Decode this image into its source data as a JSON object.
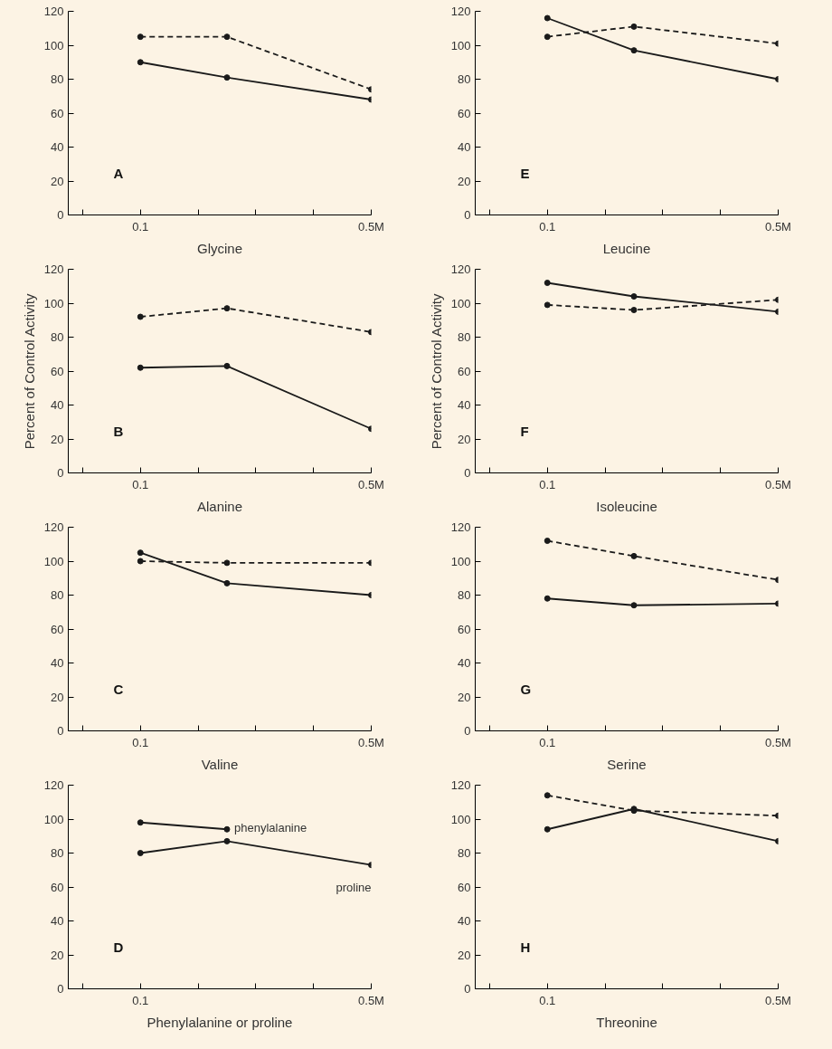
{
  "chart_data": [
    {
      "type": "line",
      "xlabel": "Glycine",
      "annotations": [
        "A"
      ],
      "x": [
        0.1,
        0.25,
        0.5
      ],
      "xlim": [
        -0.025,
        0.5
      ],
      "ylim": [
        0,
        120
      ],
      "yticks": [
        0,
        20,
        40,
        60,
        80,
        100,
        120
      ],
      "xticks": [
        {
          "value": 0,
          "label": null
        },
        {
          "value": 0.1,
          "label": "0.1"
        },
        {
          "value": 0.2,
          "label": null
        },
        {
          "value": 0.3,
          "label": null
        },
        {
          "value": 0.4,
          "label": null
        },
        {
          "value": 0.5,
          "label": "0.5M"
        }
      ],
      "grid": false,
      "marker": "circle",
      "series": [
        {
          "color": "#1a1a1a",
          "line_style": "dashed",
          "values": [
            105,
            105,
            74
          ]
        },
        {
          "color": "#1a1a1a",
          "line_style": "solid",
          "values": [
            90,
            81,
            68
          ]
        }
      ]
    },
    {
      "type": "line",
      "xlabel": "Alanine",
      "ylabel": "Percent of Control Activity",
      "annotations": [
        "B"
      ],
      "x": [
        0.1,
        0.25,
        0.5
      ],
      "xlim": [
        -0.025,
        0.5
      ],
      "ylim": [
        0,
        120
      ],
      "yticks": [
        0,
        20,
        40,
        60,
        80,
        100,
        120
      ],
      "xticks": [
        {
          "value": 0,
          "label": null
        },
        {
          "value": 0.1,
          "label": "0.1"
        },
        {
          "value": 0.2,
          "label": null
        },
        {
          "value": 0.3,
          "label": null
        },
        {
          "value": 0.4,
          "label": null
        },
        {
          "value": 0.5,
          "label": "0.5M"
        }
      ],
      "grid": false,
      "marker": "circle",
      "series": [
        {
          "color": "#1a1a1a",
          "line_style": "dashed",
          "values": [
            92,
            97,
            83
          ]
        },
        {
          "color": "#1a1a1a",
          "line_style": "solid",
          "values": [
            62,
            63,
            26
          ]
        }
      ]
    },
    {
      "type": "line",
      "xlabel": "Valine",
      "annotations": [
        "C"
      ],
      "x": [
        0.1,
        0.25,
        0.5
      ],
      "xlim": [
        -0.025,
        0.5
      ],
      "ylim": [
        0,
        120
      ],
      "yticks": [
        0,
        20,
        40,
        60,
        80,
        100,
        120
      ],
      "xticks": [
        {
          "value": 0,
          "label": null
        },
        {
          "value": 0.1,
          "label": "0.1"
        },
        {
          "value": 0.2,
          "label": null
        },
        {
          "value": 0.3,
          "label": null
        },
        {
          "value": 0.4,
          "label": null
        },
        {
          "value": 0.5,
          "label": "0.5M"
        }
      ],
      "grid": false,
      "marker": "circle",
      "series": [
        {
          "color": "#1a1a1a",
          "line_style": "dashed",
          "values": [
            100,
            99,
            99
          ]
        },
        {
          "color": "#1a1a1a",
          "line_style": "solid",
          "values": [
            105,
            87,
            80
          ]
        }
      ]
    },
    {
      "type": "line",
      "xlabel": "Phenylalanine or proline",
      "annotations": [
        "D"
      ],
      "x": [
        0.1,
        0.25,
        0.5
      ],
      "xlim": [
        -0.025,
        0.5
      ],
      "ylim": [
        0,
        120
      ],
      "yticks": [
        0,
        20,
        40,
        60,
        80,
        100,
        120
      ],
      "xticks": [
        {
          "value": 0,
          "label": null
        },
        {
          "value": 0.1,
          "label": "0.1"
        },
        {
          "value": 0.2,
          "label": null
        },
        {
          "value": 0.3,
          "label": null
        },
        {
          "value": 0.4,
          "label": null
        },
        {
          "value": 0.5,
          "label": "0.5M"
        }
      ],
      "grid": false,
      "marker": "circle",
      "series": [
        {
          "name": "phenylalanine",
          "color": "#1a1a1a",
          "line_style": "solid",
          "x": [
            0.1,
            0.25
          ],
          "values": [
            98,
            94
          ]
        },
        {
          "name": "proline",
          "color": "#1a1a1a",
          "line_style": "solid",
          "values": [
            80,
            87,
            73
          ]
        }
      ]
    },
    {
      "type": "line",
      "xlabel": "Leucine",
      "annotations": [
        "E"
      ],
      "x": [
        0.1,
        0.25,
        0.5
      ],
      "xlim": [
        -0.025,
        0.5
      ],
      "ylim": [
        0,
        120
      ],
      "yticks": [
        0,
        20,
        40,
        60,
        80,
        100,
        120
      ],
      "xticks": [
        {
          "value": 0,
          "label": null
        },
        {
          "value": 0.1,
          "label": "0.1"
        },
        {
          "value": 0.2,
          "label": null
        },
        {
          "value": 0.3,
          "label": null
        },
        {
          "value": 0.4,
          "label": null
        },
        {
          "value": 0.5,
          "label": "0.5M"
        }
      ],
      "grid": false,
      "marker": "circle",
      "series": [
        {
          "color": "#1a1a1a",
          "line_style": "dashed",
          "values": [
            105,
            111,
            101
          ]
        },
        {
          "color": "#1a1a1a",
          "line_style": "solid",
          "values": [
            116,
            97,
            80
          ]
        }
      ]
    },
    {
      "type": "line",
      "xlabel": "Isoleucine",
      "ylabel": "Percent of Control Activity",
      "annotations": [
        "F"
      ],
      "x": [
        0.1,
        0.25,
        0.5
      ],
      "xlim": [
        -0.025,
        0.5
      ],
      "ylim": [
        0,
        120
      ],
      "yticks": [
        0,
        20,
        40,
        60,
        80,
        100,
        120
      ],
      "xticks": [
        {
          "value": 0,
          "label": null
        },
        {
          "value": 0.1,
          "label": "0.1"
        },
        {
          "value": 0.2,
          "label": null
        },
        {
          "value": 0.3,
          "label": null
        },
        {
          "value": 0.4,
          "label": null
        },
        {
          "value": 0.5,
          "label": "0.5M"
        }
      ],
      "grid": false,
      "marker": "circle",
      "series": [
        {
          "color": "#1a1a1a",
          "line_style": "dashed",
          "values": [
            99,
            96,
            102
          ]
        },
        {
          "color": "#1a1a1a",
          "line_style": "solid",
          "values": [
            112,
            104,
            95
          ]
        }
      ]
    },
    {
      "type": "line",
      "xlabel": "Serine",
      "annotations": [
        "G"
      ],
      "x": [
        0.1,
        0.25,
        0.5
      ],
      "xlim": [
        -0.025,
        0.5
      ],
      "ylim": [
        0,
        120
      ],
      "yticks": [
        0,
        20,
        40,
        60,
        80,
        100,
        120
      ],
      "xticks": [
        {
          "value": 0,
          "label": null
        },
        {
          "value": 0.1,
          "label": "0.1"
        },
        {
          "value": 0.2,
          "label": null
        },
        {
          "value": 0.3,
          "label": null
        },
        {
          "value": 0.4,
          "label": null
        },
        {
          "value": 0.5,
          "label": "0.5M"
        }
      ],
      "grid": false,
      "marker": "circle",
      "series": [
        {
          "color": "#1a1a1a",
          "line_style": "dashed",
          "values": [
            112,
            103,
            89
          ]
        },
        {
          "color": "#1a1a1a",
          "line_style": "solid",
          "values": [
            78,
            74,
            75
          ]
        }
      ]
    },
    {
      "type": "line",
      "xlabel": "Threonine",
      "annotations": [
        "H"
      ],
      "x": [
        0.1,
        0.25,
        0.5
      ],
      "xlim": [
        -0.025,
        0.5
      ],
      "ylim": [
        0,
        120
      ],
      "yticks": [
        0,
        20,
        40,
        60,
        80,
        100,
        120
      ],
      "xticks": [
        {
          "value": 0,
          "label": null
        },
        {
          "value": 0.1,
          "label": "0.1"
        },
        {
          "value": 0.2,
          "label": null
        },
        {
          "value": 0.3,
          "label": null
        },
        {
          "value": 0.4,
          "label": null
        },
        {
          "value": 0.5,
          "label": "0.5M"
        }
      ],
      "grid": false,
      "marker": "circle",
      "series": [
        {
          "color": "#1a1a1a",
          "line_style": "dashed",
          "values": [
            114,
            105,
            102
          ]
        },
        {
          "color": "#1a1a1a",
          "line_style": "solid",
          "values": [
            94,
            106,
            87
          ]
        }
      ]
    }
  ]
}
